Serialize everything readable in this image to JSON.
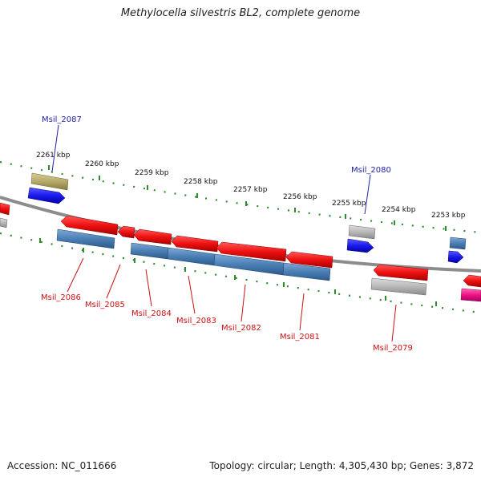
{
  "title": "Methylocella silvestris BL2, complete genome",
  "footer": {
    "accession": "Accession: NC_011666",
    "summary": "Topology: circular; Length: 4,305,430 bp; Genes: 3,872"
  },
  "scale_labels": [
    "2261 kbp",
    "2260 kbp",
    "2259 kbp",
    "2258 kbp",
    "2257 kbp",
    "2256 kbp",
    "2255 kbp",
    "2254 kbp",
    "2253 kbp"
  ],
  "gene_labels_top": [
    "Msil_2087",
    "Msil_2080"
  ],
  "gene_labels_bottom": [
    "Msil_2086",
    "Msil_2085",
    "Msil_2084",
    "Msil_2083",
    "Msil_2082",
    "Msil_2081",
    "Msil_2079"
  ],
  "colors": {
    "backbone": "#8c8c8c",
    "tick": "#2e8b2e",
    "red": "#ee1111",
    "steel": "#4a7fb5",
    "blue": "#1a1aee",
    "gray": "#b8b8b8",
    "olive": "#b5a86a",
    "pink": "#ee1188",
    "label_blue": "#2222aa",
    "label_red": "#cc1111"
  }
}
